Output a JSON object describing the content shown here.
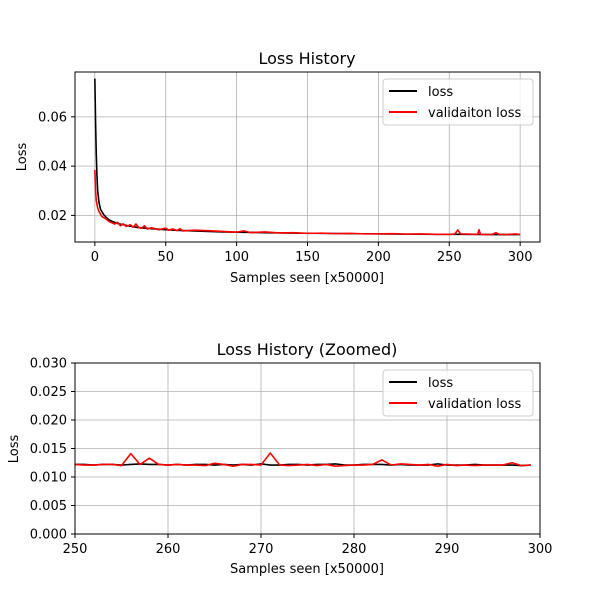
{
  "chart_data": [
    {
      "type": "line",
      "title": "Loss History",
      "xlabel": "Samples seen [x50000]",
      "ylabel": "Loss",
      "xlim": [
        -14,
        314
      ],
      "ylim": [
        0.0092,
        0.0782
      ],
      "xticks": [
        0,
        50,
        100,
        150,
        200,
        250,
        300
      ],
      "yticks": [
        0.02,
        0.04,
        0.06
      ],
      "yticks_format": 2,
      "grid": true,
      "legend_placement": "upper-right",
      "series": [
        {
          "name": "loss",
          "color": "#000000",
          "points": [
            [
              0,
              0.0755
            ],
            [
              0.5,
              0.058
            ],
            [
              1,
              0.045
            ],
            [
              1.5,
              0.036
            ],
            [
              2,
              0.03
            ],
            [
              3,
              0.025
            ],
            [
              4,
              0.0225
            ],
            [
              6,
              0.0205
            ],
            [
              8,
              0.0192
            ],
            [
              10,
              0.0182
            ],
            [
              13,
              0.0174
            ],
            [
              16,
              0.0167
            ],
            [
              20,
              0.0162
            ],
            [
              25,
              0.0156
            ],
            [
              30,
              0.0151
            ],
            [
              40,
              0.0146
            ],
            [
              50,
              0.0142
            ],
            [
              60,
              0.0139
            ],
            [
              70,
              0.0137
            ],
            [
              80,
              0.0135
            ],
            [
              90,
              0.0133
            ],
            [
              100,
              0.0132
            ],
            [
              120,
              0.013
            ],
            [
              140,
              0.0128
            ],
            [
              160,
              0.0127
            ],
            [
              180,
              0.0126
            ],
            [
              200,
              0.0125
            ],
            [
              220,
              0.0124
            ],
            [
              240,
              0.0123
            ],
            [
              260,
              0.0123
            ],
            [
              280,
              0.0122
            ],
            [
              300,
              0.0122
            ]
          ]
        },
        {
          "name": "validaiton loss",
          "color": "#ff0000",
          "points": [
            [
              0,
              0.0385
            ],
            [
              0.5,
              0.03
            ],
            [
              1,
              0.026
            ],
            [
              2,
              0.023
            ],
            [
              3,
              0.0215
            ],
            [
              5,
              0.0195
            ],
            [
              8,
              0.0185
            ],
            [
              10,
              0.0175
            ],
            [
              12,
              0.017
            ],
            [
              14,
              0.0165
            ],
            [
              16,
              0.0172
            ],
            [
              18,
              0.0158
            ],
            [
              20,
              0.0166
            ],
            [
              22,
              0.0155
            ],
            [
              25,
              0.0162
            ],
            [
              27,
              0.0152
            ],
            [
              29,
              0.0165
            ],
            [
              31,
              0.015
            ],
            [
              33,
              0.0148
            ],
            [
              35,
              0.0158
            ],
            [
              37,
              0.0145
            ],
            [
              40,
              0.015
            ],
            [
              45,
              0.0142
            ],
            [
              50,
              0.0148
            ],
            [
              52,
              0.014
            ],
            [
              55,
              0.0145
            ],
            [
              58,
              0.0138
            ],
            [
              60,
              0.0146
            ],
            [
              62,
              0.0137
            ],
            [
              70,
              0.014
            ],
            [
              80,
              0.0138
            ],
            [
              90,
              0.0135
            ],
            [
              100,
              0.0132
            ],
            [
              105,
              0.0137
            ],
            [
              110,
              0.013
            ],
            [
              120,
              0.0133
            ],
            [
              130,
              0.0129
            ],
            [
              140,
              0.013
            ],
            [
              150,
              0.0127
            ],
            [
              160,
              0.0128
            ],
            [
              170,
              0.0126
            ],
            [
              180,
              0.0127
            ],
            [
              190,
              0.0125
            ],
            [
              200,
              0.0125
            ],
            [
              210,
              0.0126
            ],
            [
              220,
              0.0124
            ],
            [
              230,
              0.0125
            ],
            [
              240,
              0.0123
            ],
            [
              250,
              0.0123
            ],
            [
              254,
              0.0125
            ],
            [
              256,
              0.0141
            ],
            [
              258,
              0.0125
            ],
            [
              265,
              0.0124
            ],
            [
              270,
              0.0123
            ],
            [
              271,
              0.0142
            ],
            [
              272,
              0.0123
            ],
            [
              280,
              0.0122
            ],
            [
              283,
              0.013
            ],
            [
              285,
              0.0123
            ],
            [
              290,
              0.0122
            ],
            [
              297,
              0.0125
            ],
            [
              300,
              0.0122
            ]
          ]
        }
      ]
    },
    {
      "type": "line",
      "title": "Loss History (Zoomed)",
      "xlabel": "Samples seen [x50000]",
      "ylabel": "Loss",
      "xlim": [
        250,
        300
      ],
      "ylim": [
        0.0,
        0.03
      ],
      "xticks": [
        250,
        260,
        270,
        280,
        290,
        300
      ],
      "yticks": [
        0.0,
        0.005,
        0.01,
        0.015,
        0.02,
        0.025,
        0.03
      ],
      "yticks_format": 3,
      "grid": true,
      "legend_placement": "upper-right",
      "series": [
        {
          "name": "loss",
          "color": "#000000",
          "points": [
            [
              250,
              0.0122
            ],
            [
              251,
              0.0122
            ],
            [
              252,
              0.0121
            ],
            [
              253,
              0.0122
            ],
            [
              254,
              0.0122
            ],
            [
              255,
              0.0121
            ],
            [
              256,
              0.0122
            ],
            [
              257,
              0.0123
            ],
            [
              258,
              0.0122
            ],
            [
              259,
              0.0122
            ],
            [
              260,
              0.0121
            ],
            [
              261,
              0.0122
            ],
            [
              262,
              0.0121
            ],
            [
              263,
              0.0122
            ],
            [
              264,
              0.0122
            ],
            [
              265,
              0.0121
            ],
            [
              266,
              0.0122
            ],
            [
              267,
              0.0121
            ],
            [
              268,
              0.0122
            ],
            [
              269,
              0.0121
            ],
            [
              270,
              0.0123
            ],
            [
              271,
              0.0121
            ],
            [
              272,
              0.0121
            ],
            [
              273,
              0.0122
            ],
            [
              274,
              0.0122
            ],
            [
              275,
              0.0121
            ],
            [
              276,
              0.0122
            ],
            [
              277,
              0.0122
            ],
            [
              278,
              0.0123
            ],
            [
              279,
              0.0121
            ],
            [
              280,
              0.0121
            ],
            [
              281,
              0.0122
            ],
            [
              282,
              0.0122
            ],
            [
              283,
              0.0122
            ],
            [
              284,
              0.0121
            ],
            [
              285,
              0.0122
            ],
            [
              286,
              0.0121
            ],
            [
              287,
              0.0121
            ],
            [
              288,
              0.0121
            ],
            [
              289,
              0.0123
            ],
            [
              290,
              0.0121
            ],
            [
              291,
              0.0121
            ],
            [
              292,
              0.0121
            ],
            [
              293,
              0.0122
            ],
            [
              294,
              0.0121
            ],
            [
              295,
              0.0121
            ],
            [
              296,
              0.0121
            ],
            [
              297,
              0.0121
            ],
            [
              298,
              0.012
            ],
            [
              299,
              0.0121
            ]
          ]
        },
        {
          "name": "validation loss",
          "color": "#ff0000",
          "points": [
            [
              250,
              0.0122
            ],
            [
              251,
              0.0121
            ],
            [
              252,
              0.0121
            ],
            [
              253,
              0.0122
            ],
            [
              254,
              0.0122
            ],
            [
              255,
              0.012
            ],
            [
              256,
              0.0141
            ],
            [
              257,
              0.0122
            ],
            [
              258,
              0.0133
            ],
            [
              259,
              0.0122
            ],
            [
              260,
              0.0121
            ],
            [
              261,
              0.0122
            ],
            [
              262,
              0.0121
            ],
            [
              263,
              0.0121
            ],
            [
              264,
              0.012
            ],
            [
              265,
              0.0124
            ],
            [
              266,
              0.0122
            ],
            [
              267,
              0.0119
            ],
            [
              268,
              0.0122
            ],
            [
              269,
              0.0122
            ],
            [
              270,
              0.0121
            ],
            [
              271,
              0.0142
            ],
            [
              272,
              0.0121
            ],
            [
              273,
              0.012
            ],
            [
              274,
              0.0121
            ],
            [
              275,
              0.0122
            ],
            [
              276,
              0.012
            ],
            [
              277,
              0.0122
            ],
            [
              278,
              0.0119
            ],
            [
              279,
              0.012
            ],
            [
              280,
              0.0121
            ],
            [
              281,
              0.0121
            ],
            [
              282,
              0.0122
            ],
            [
              283,
              0.013
            ],
            [
              284,
              0.0121
            ],
            [
              285,
              0.0123
            ],
            [
              286,
              0.0122
            ],
            [
              287,
              0.0121
            ],
            [
              288,
              0.0122
            ],
            [
              289,
              0.0119
            ],
            [
              290,
              0.0122
            ],
            [
              291,
              0.012
            ],
            [
              292,
              0.0121
            ],
            [
              293,
              0.012
            ],
            [
              294,
              0.0121
            ],
            [
              295,
              0.0121
            ],
            [
              296,
              0.0121
            ],
            [
              297,
              0.0125
            ],
            [
              298,
              0.012
            ],
            [
              299,
              0.0121
            ]
          ]
        }
      ]
    }
  ]
}
